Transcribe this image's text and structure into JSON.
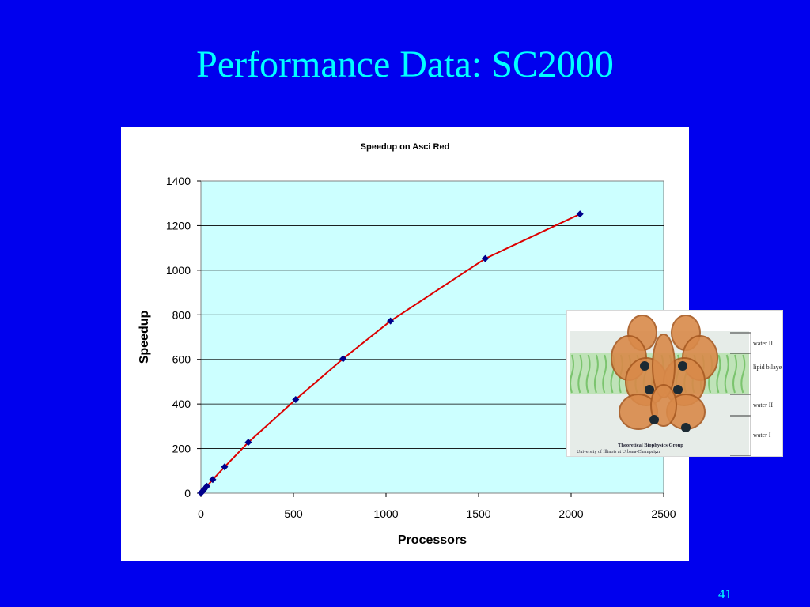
{
  "slide": {
    "title": "Performance Data: SC2000",
    "page_number": "41"
  },
  "inset_image": {
    "layers": [
      "water III",
      "lipid bilayer",
      "water II",
      "water I"
    ],
    "credit_line1": "Theoretical Biophysics Group",
    "credit_line2": "University of Illinois at Urbana-Champaign"
  },
  "colors": {
    "background": "#0000ee",
    "title": "#00ffff",
    "plot_area": "#ccffff",
    "line": "#dd0000",
    "marker": "#00008b"
  },
  "chart_data": {
    "type": "line",
    "title": "Speedup on Asci Red",
    "xlabel": "Processors",
    "ylabel": "Speedup",
    "xlim": [
      0,
      2500
    ],
    "ylim": [
      0,
      1400
    ],
    "xticks": [
      0,
      500,
      1000,
      1500,
      2000,
      2500
    ],
    "yticks": [
      0,
      200,
      400,
      600,
      800,
      1000,
      1200,
      1400
    ],
    "grid": "horizontal",
    "legend": "none",
    "series": [
      {
        "x": [
          1,
          4,
          8,
          16,
          32,
          64,
          128,
          256,
          512,
          768,
          1024,
          1536,
          2048
        ],
        "y": [
          1,
          4,
          8,
          16,
          31,
          61,
          118,
          228,
          420,
          603,
          772,
          1052,
          1252
        ]
      }
    ]
  }
}
